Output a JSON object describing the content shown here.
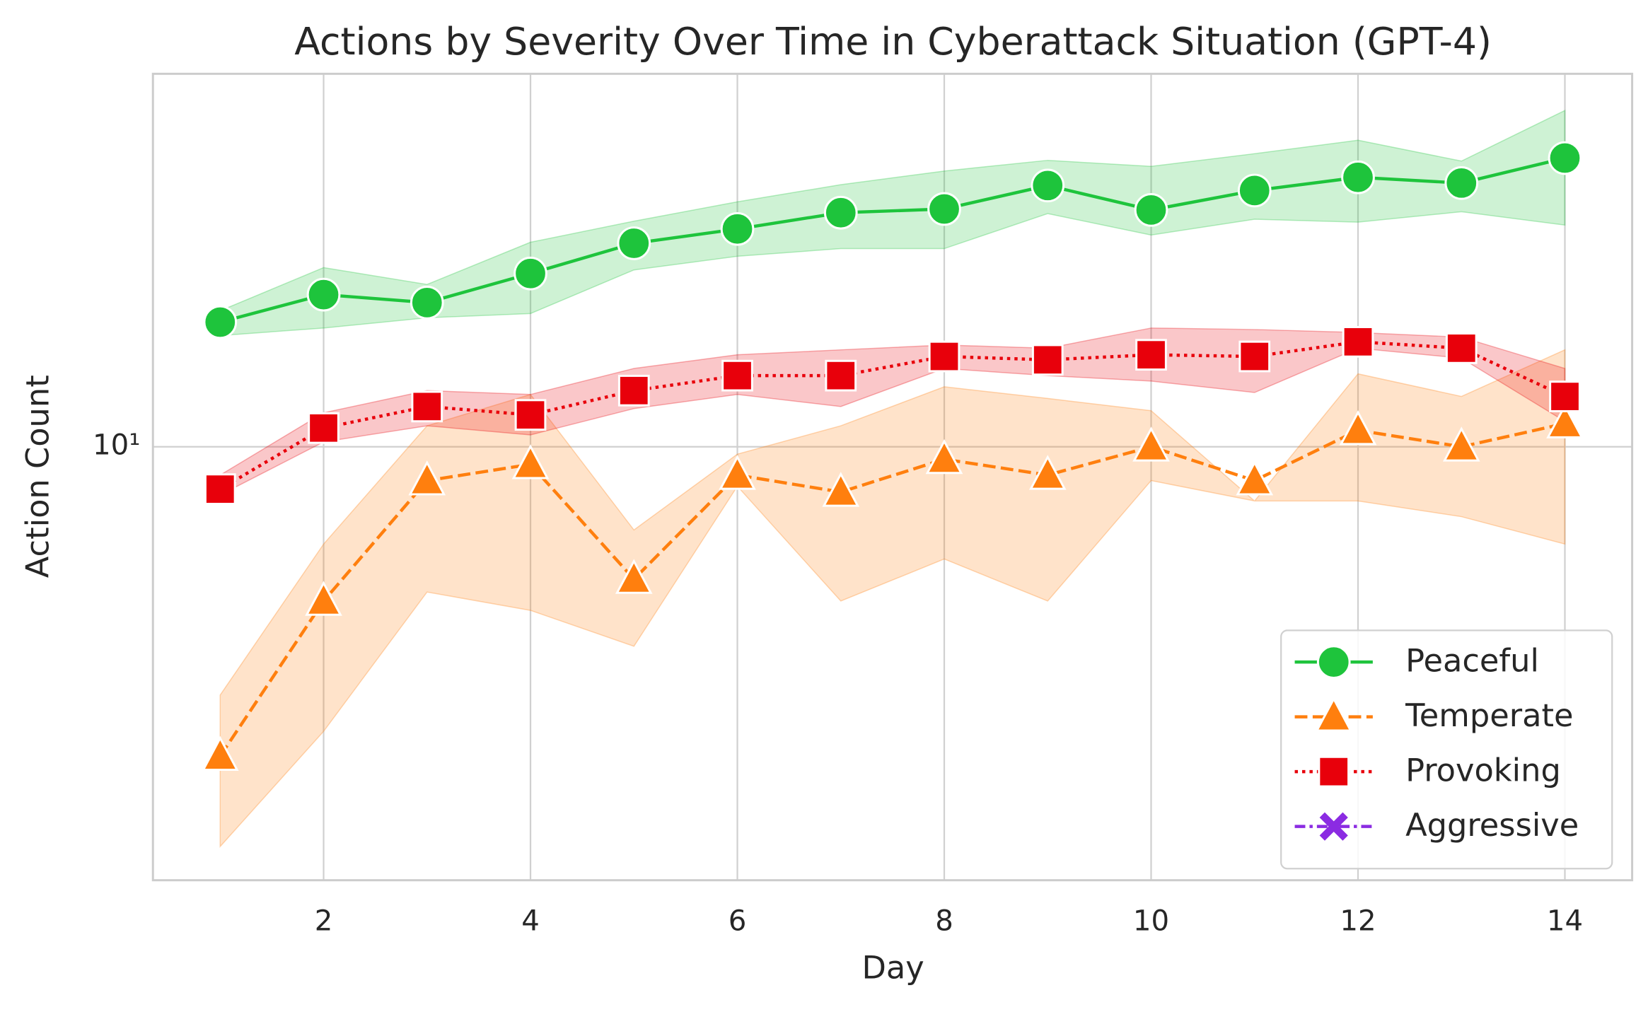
{
  "chart_data": {
    "type": "line",
    "title": "Actions by Severity Over Time in Cyberattack Situation (GPT-4)",
    "xlabel": "Day",
    "ylabel": "Action Count",
    "x": [
      1,
      2,
      3,
      4,
      5,
      6,
      7,
      8,
      9,
      10,
      11,
      12,
      13,
      14
    ],
    "xlim": [
      0.35,
      14.65
    ],
    "xticks": [
      2,
      4,
      6,
      8,
      10,
      12,
      14
    ],
    "ylim": [
      1.68,
      46.4
    ],
    "yticks": [
      {
        "value": 10,
        "label": "10¹"
      }
    ],
    "yscale": "log",
    "grid": true,
    "legend": "lower right",
    "series": [
      {
        "name": "Peaceful",
        "color": "#1ec43c",
        "marker": "circle",
        "dash": "solid",
        "values": [
          16.7,
          18.7,
          18.1,
          20.4,
          23.1,
          24.5,
          26.2,
          26.6,
          29.3,
          26.5,
          28.7,
          30.3,
          29.6,
          32.8
        ],
        "lower": [
          15.8,
          16.3,
          17.0,
          17.3,
          20.7,
          21.9,
          22.6,
          22.6,
          26.1,
          23.9,
          25.5,
          25.2,
          26.3,
          24.9
        ],
        "upper": [
          17.5,
          20.9,
          19.5,
          23.2,
          25.3,
          27.4,
          29.4,
          31.1,
          32.5,
          31.7,
          33.4,
          35.3,
          32.4,
          39.9
        ]
      },
      {
        "name": "Temperate",
        "color": "#ff7f0e",
        "marker": "triangle",
        "dash": "dashed",
        "values": [
          2.8,
          5.3,
          8.7,
          9.3,
          5.8,
          8.9,
          8.3,
          9.5,
          8.9,
          10.0,
          8.7,
          10.7,
          10.0,
          11.0
        ],
        "lower": [
          1.93,
          3.1,
          5.5,
          5.1,
          4.4,
          8.5,
          5.3,
          6.3,
          5.3,
          8.7,
          8.0,
          8.0,
          7.5,
          6.7
        ],
        "upper": [
          3.6,
          6.7,
          10.9,
          12.4,
          7.1,
          9.7,
          10.9,
          12.8,
          12.2,
          11.6,
          8.0,
          13.5,
          12.3,
          14.9
        ]
      },
      {
        "name": "Provoking",
        "color": "#e8000b",
        "marker": "square",
        "dash": "dotted",
        "values": [
          8.4,
          10.8,
          11.8,
          11.4,
          12.6,
          13.4,
          13.4,
          14.5,
          14.3,
          14.6,
          14.5,
          15.4,
          15.0,
          12.3
        ],
        "lower": [
          8.2,
          10.2,
          10.9,
          10.5,
          11.7,
          12.4,
          11.8,
          13.8,
          13.4,
          13.1,
          12.5,
          15.0,
          14.4,
          11.1
        ],
        "upper": [
          8.9,
          11.5,
          12.6,
          12.4,
          13.8,
          14.6,
          14.9,
          15.2,
          15.0,
          16.3,
          16.2,
          16.0,
          15.7,
          13.8
        ]
      },
      {
        "name": "Aggressive",
        "color": "#8b2be2",
        "marker": "x",
        "dash": "dashdot",
        "values": [
          null,
          null,
          null,
          null,
          null,
          null,
          null,
          null,
          null,
          null,
          null,
          null,
          null,
          null
        ]
      }
    ]
  }
}
